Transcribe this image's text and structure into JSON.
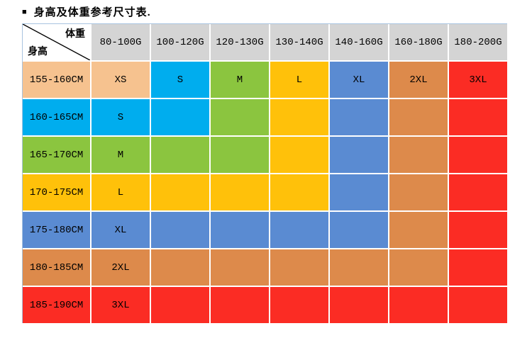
{
  "title": {
    "bullet": "■",
    "text": "身高及体重参考尺寸表."
  },
  "colors": {
    "header_bg": "#d4d4d4",
    "border": "#a8c4e0",
    "text": "#000000",
    "peach": "#f6c28f",
    "cyan": "#00adee",
    "green": "#8bc53f",
    "gold": "#ffc10a",
    "blue": "#5a8bd2",
    "orange": "#dd8a4b",
    "red": "#fb2c24"
  },
  "table": {
    "corner": {
      "top_right": "体重",
      "bottom_left": "身高"
    },
    "weight_headers": [
      "80-100G",
      "100-120G",
      "120-130G",
      "130-140G",
      "140-160G",
      "160-180G",
      "180-200G"
    ],
    "rows": [
      {
        "label": "155-160CM",
        "label_color": "peach",
        "cells": [
          {
            "text": "XS",
            "color": "peach"
          },
          {
            "text": "S",
            "color": "cyan"
          },
          {
            "text": "M",
            "color": "green"
          },
          {
            "text": "L",
            "color": "gold"
          },
          {
            "text": "XL",
            "color": "blue"
          },
          {
            "text": "2XL",
            "color": "orange"
          },
          {
            "text": "3XL",
            "color": "red"
          }
        ]
      },
      {
        "label": "160-165CM",
        "label_color": "cyan",
        "cells": [
          {
            "text": "S",
            "color": "cyan"
          },
          {
            "text": "",
            "color": "cyan"
          },
          {
            "text": "",
            "color": "green"
          },
          {
            "text": "",
            "color": "gold"
          },
          {
            "text": "",
            "color": "blue"
          },
          {
            "text": "",
            "color": "orange"
          },
          {
            "text": "",
            "color": "red"
          }
        ]
      },
      {
        "label": "165-170CM",
        "label_color": "green",
        "cells": [
          {
            "text": "M",
            "color": "green"
          },
          {
            "text": "",
            "color": "green"
          },
          {
            "text": "",
            "color": "green"
          },
          {
            "text": "",
            "color": "gold"
          },
          {
            "text": "",
            "color": "blue"
          },
          {
            "text": "",
            "color": "orange"
          },
          {
            "text": "",
            "color": "red"
          }
        ]
      },
      {
        "label": "170-175CM",
        "label_color": "gold",
        "cells": [
          {
            "text": "L",
            "color": "gold"
          },
          {
            "text": "",
            "color": "gold"
          },
          {
            "text": "",
            "color": "gold"
          },
          {
            "text": "",
            "color": "gold"
          },
          {
            "text": "",
            "color": "blue"
          },
          {
            "text": "",
            "color": "orange"
          },
          {
            "text": "",
            "color": "red"
          }
        ]
      },
      {
        "label": "175-180CM",
        "label_color": "blue",
        "cells": [
          {
            "text": "XL",
            "color": "blue"
          },
          {
            "text": "",
            "color": "blue"
          },
          {
            "text": "",
            "color": "blue"
          },
          {
            "text": "",
            "color": "blue"
          },
          {
            "text": "",
            "color": "blue"
          },
          {
            "text": "",
            "color": "orange"
          },
          {
            "text": "",
            "color": "red"
          }
        ]
      },
      {
        "label": "180-185CM",
        "label_color": "orange",
        "cells": [
          {
            "text": "2XL",
            "color": "orange"
          },
          {
            "text": "",
            "color": "orange"
          },
          {
            "text": "",
            "color": "orange"
          },
          {
            "text": "",
            "color": "orange"
          },
          {
            "text": "",
            "color": "orange"
          },
          {
            "text": "",
            "color": "orange"
          },
          {
            "text": "",
            "color": "red"
          }
        ]
      },
      {
        "label": "185-190CM",
        "label_color": "red",
        "cells": [
          {
            "text": "3XL",
            "color": "red"
          },
          {
            "text": "",
            "color": "red"
          },
          {
            "text": "",
            "color": "red"
          },
          {
            "text": "",
            "color": "red"
          },
          {
            "text": "",
            "color": "red"
          },
          {
            "text": "",
            "color": "red"
          },
          {
            "text": "",
            "color": "red"
          }
        ]
      }
    ]
  },
  "chart_data": {
    "type": "table",
    "title": "身高及体重参考尺寸表",
    "columns": [
      "身高 \\ 体重",
      "80-100G",
      "100-120G",
      "120-130G",
      "130-140G",
      "140-160G",
      "160-180G",
      "180-200G"
    ],
    "rows": [
      [
        "155-160CM",
        "XS",
        "S",
        "M",
        "L",
        "XL",
        "2XL",
        "3XL"
      ],
      [
        "160-165CM",
        "S",
        "",
        "",
        "",
        "",
        "",
        ""
      ],
      [
        "165-170CM",
        "M",
        "",
        "",
        "",
        "",
        "",
        ""
      ],
      [
        "170-175CM",
        "L",
        "",
        "",
        "",
        "",
        "",
        ""
      ],
      [
        "175-180CM",
        "XL",
        "",
        "",
        "",
        "",
        "",
        ""
      ],
      [
        "180-185CM",
        "2XL",
        "",
        "",
        "",
        "",
        "",
        ""
      ],
      [
        "185-190CM",
        "3XL",
        "",
        "",
        "",
        "",
        "",
        ""
      ]
    ],
    "legend_colors": {
      "XS": "#f6c28f",
      "S": "#00adee",
      "M": "#8bc53f",
      "L": "#ffc10a",
      "XL": "#5a8bd2",
      "2XL": "#dd8a4b",
      "3XL": "#fb2c24"
    }
  }
}
